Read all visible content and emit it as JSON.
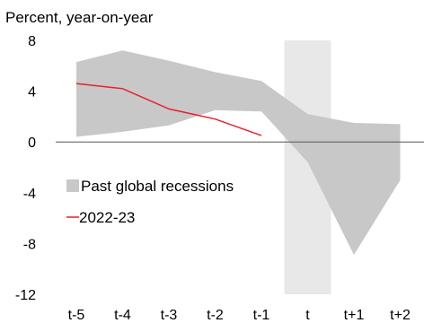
{
  "chart_data": {
    "type": "area",
    "ylabel": "Percent, year-on-year",
    "categories": [
      "t-5",
      "t-4",
      "t-3",
      "t-2",
      "t-1",
      "t",
      "t+1",
      "t+2"
    ],
    "ylim": [
      -12,
      8
    ],
    "yticks": [
      8,
      4,
      0,
      -4,
      -8,
      -12
    ],
    "highlight_category": "t",
    "zero_line": true,
    "legend_position": "center-left",
    "series": [
      {
        "name": "Past global recessions",
        "kind": "range",
        "upper": [
          6.3,
          7.2,
          6.4,
          5.5,
          4.8,
          2.2,
          1.5,
          1.4
        ],
        "lower": [
          0.4,
          0.8,
          1.3,
          2.5,
          2.4,
          -1.6,
          -8.9,
          -3.0
        ],
        "color": "#c8c8c8"
      },
      {
        "name": "2022-23",
        "kind": "line",
        "values": [
          4.6,
          4.2,
          2.6,
          1.8,
          0.5,
          null,
          null,
          null
        ],
        "color": "#e8202a"
      }
    ]
  }
}
